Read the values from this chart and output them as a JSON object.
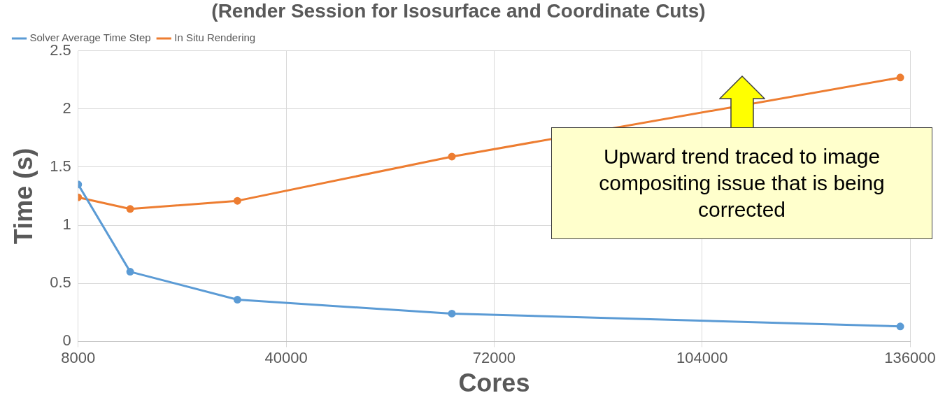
{
  "chart_data": {
    "type": "line",
    "title": "(Render Session for Isosurface and Coordinate Cuts)",
    "xlabel": "Cores",
    "ylabel": "Time (s)",
    "series": [
      {
        "name": "Solver Average Time Step",
        "color": "#5b9bd5",
        "x": [
          8000,
          16000,
          32500,
          65500,
          134500
        ],
        "values": [
          1.35,
          0.6,
          0.36,
          0.24,
          0.13
        ]
      },
      {
        "name": "In Situ Rendering",
        "color": "#ed7d31",
        "x": [
          8000,
          16000,
          32500,
          65500,
          134500
        ],
        "values": [
          1.24,
          1.14,
          1.21,
          1.59,
          2.27
        ]
      }
    ],
    "xlim": [
      8000,
      136000
    ],
    "xticks": [
      8000,
      40000,
      72000,
      104000,
      136000
    ],
    "ylim": [
      0,
      2.5
    ],
    "yticks": [
      0,
      0.5,
      1,
      1.5,
      2,
      2.5
    ],
    "grid": true,
    "legend": "top left",
    "marker": "circle",
    "line_style": "solid",
    "annotations": [
      "Upward trend traced to image compositing issue that is being corrected"
    ]
  }
}
